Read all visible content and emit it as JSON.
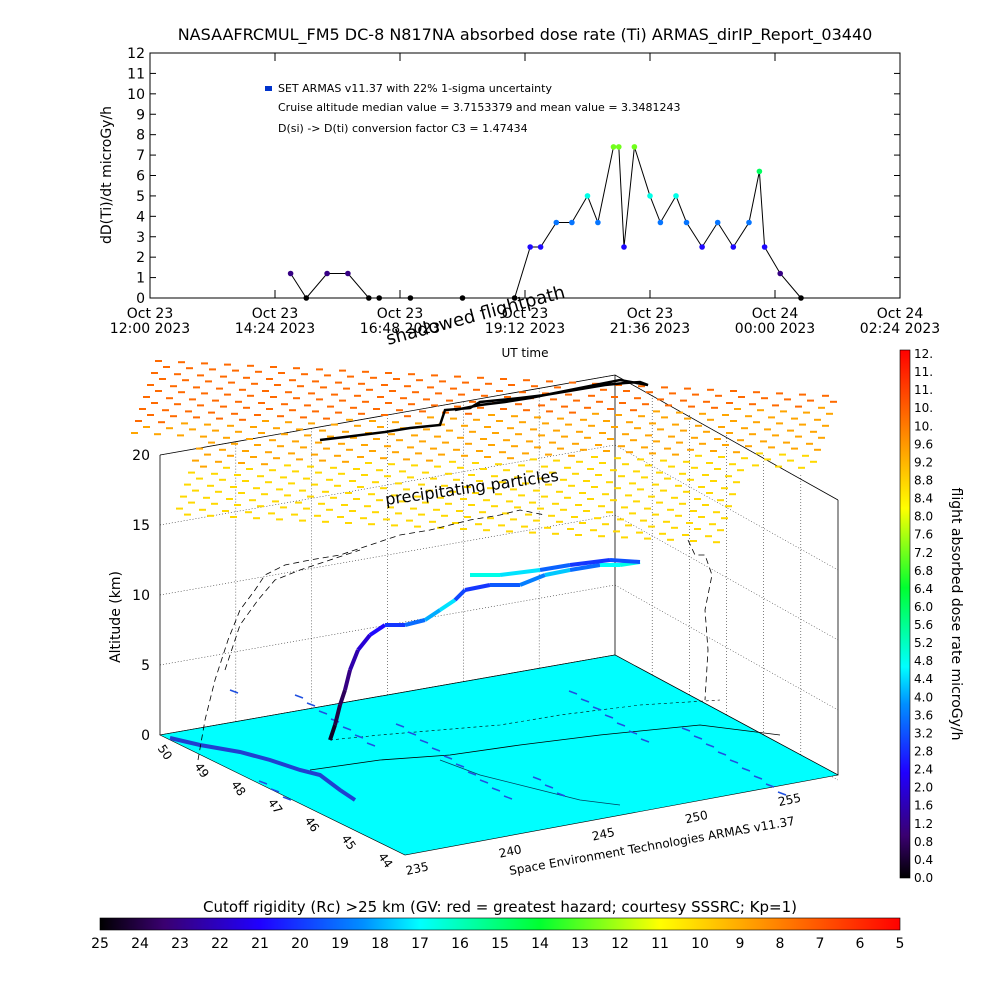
{
  "title": "NASAAFRCMUL_FM5 DC-8   N817NA absorbed dose rate (Ti) ARMAS_dirIP_Report_03440",
  "top_chart": {
    "ylabel": "dD(Ti)/dt microGy/h",
    "xlabel": "UT time",
    "yticks": [
      "0",
      "1",
      "2",
      "3",
      "4",
      "5",
      "6",
      "7",
      "8",
      "9",
      "10",
      "11",
      "12"
    ],
    "xticks": [
      {
        "l1": "Oct 23",
        "l2": "12:00 2023"
      },
      {
        "l1": "Oct 23",
        "l2": "14:24 2023"
      },
      {
        "l1": "Oct 23",
        "l2": "16:48 2023"
      },
      {
        "l1": "Oct 23",
        "l2": "19:12 2023"
      },
      {
        "l1": "Oct 23",
        "l2": "21:36 2023"
      },
      {
        "l1": "Oct 24",
        "l2": "00:00 2023"
      },
      {
        "l1": "Oct 24",
        "l2": "02:24 2023"
      }
    ],
    "legend_series": "SET ARMAS v11.37 with 22% 1-sigma uncertainty",
    "legend_median": "Cruise altitude median value = 3.7153379 and mean value = 3.3481243",
    "legend_conv": "D(si) -> D(ti) conversion factor C3 = 1.47434"
  },
  "chart_data": [
    {
      "type": "line",
      "title": "NASAAFRCMUL_FM5 DC-8   N817NA absorbed dose rate (Ti) ARMAS_dirIP_Report_03440",
      "xlabel": "UT time",
      "ylabel": "dD(Ti)/dt microGy/h",
      "xlim": [
        "2023-10-23 12:00",
        "2023-10-24 02:24"
      ],
      "ylim": [
        0,
        12
      ],
      "series": [
        {
          "name": "SET ARMAS v11.37 with 22% 1-sigma uncertainty",
          "x_hours": [
            14.7,
            15.0,
            15.4,
            15.8,
            16.2,
            16.4,
            17.0,
            18.0,
            19.0,
            19.3,
            19.5,
            19.8,
            20.1,
            20.4,
            20.6,
            20.9,
            21.0,
            21.1,
            21.3,
            21.6,
            21.8,
            22.1,
            22.3,
            22.6,
            22.9,
            23.2,
            23.5,
            23.7,
            23.8,
            24.1,
            24.5
          ],
          "values": [
            1.2,
            0.0,
            1.2,
            1.2,
            0.0,
            0.0,
            0.0,
            0.0,
            0.0,
            2.5,
            2.5,
            3.7,
            3.7,
            5.0,
            3.7,
            7.4,
            7.4,
            2.5,
            7.4,
            5.0,
            3.7,
            5.0,
            3.7,
            2.5,
            3.7,
            2.5,
            3.7,
            6.2,
            2.5,
            1.2,
            0.0
          ]
        }
      ]
    },
    {
      "type": "scatter",
      "title": "",
      "xlabel": "",
      "ylabel": "Altitude (km)",
      "zticks": [
        0,
        5,
        10,
        15,
        20
      ],
      "lon_ticks": [
        235,
        240,
        245,
        250,
        255
      ],
      "lat_ticks": [
        44,
        45,
        46,
        47,
        48,
        49,
        50
      ]
    }
  ],
  "annotations": {
    "shadowed": "shadowed flightpath",
    "precip": "precipitating particles",
    "credit": "Space Environment Technologies ARMAS v11.37"
  },
  "threed": {
    "zlabel": "Altitude (km)",
    "zticks": [
      "0",
      "5",
      "10",
      "15",
      "20"
    ],
    "lon_ticks": [
      "235",
      "240",
      "245",
      "250",
      "255"
    ],
    "lat_ticks": [
      "44",
      "45",
      "46",
      "47",
      "48",
      "49",
      "50"
    ]
  },
  "colorbar_right": {
    "label": "flight absorbed dose rate microGy/h",
    "ticks": [
      "12.",
      "11.",
      "11.",
      "10.",
      "10.",
      "9.6",
      "9.2",
      "8.8",
      "8.4",
      "8.0",
      "7.6",
      "7.2",
      "6.8",
      "6.4",
      "6.0",
      "5.6",
      "5.2",
      "4.8",
      "4.4",
      "4.0",
      "3.6",
      "3.2",
      "2.8",
      "2.4",
      "2.0",
      "1.6",
      "1.2",
      "0.8",
      "0.4",
      "0.0"
    ]
  },
  "colorbar_bottom": {
    "title": "Cutoff rigidity (Rc) >25 km (GV: red = greatest hazard; courtesy SSSRC; Kp=1)",
    "ticks": [
      "25",
      "24",
      "23",
      "22",
      "21",
      "20",
      "19",
      "18",
      "17",
      "16",
      "15",
      "14",
      "13",
      "12",
      "11",
      "10",
      "9",
      "8",
      "7",
      "6",
      "5"
    ]
  },
  "colors": {
    "ground": "#00ffff",
    "line": "#000000",
    "axis": "#000000"
  }
}
